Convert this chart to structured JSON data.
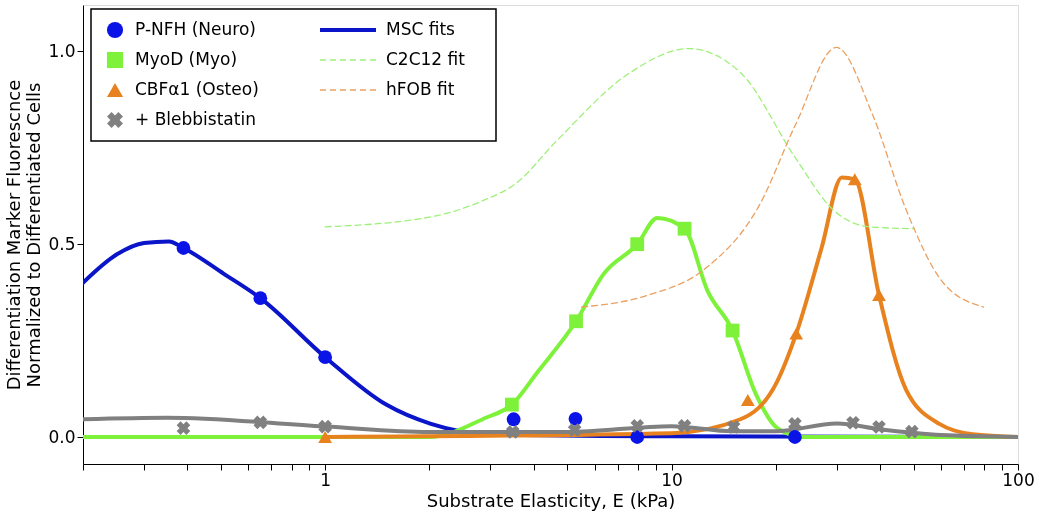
{
  "chart_data": {
    "type": "scatter",
    "xlabel": "Substrate Elasticity, E (kPa)",
    "ylabel": "Differentiation Marker Fluorescnce\nNormalized to Differentiated Cells",
    "log": "x",
    "grid": false,
    "legend": "top left",
    "xlim": [
      0.2,
      100
    ],
    "xticks": [
      {
        "value": 0.2,
        "label": null
      },
      {
        "value": 0.3,
        "label": null
      },
      {
        "value": 0.4,
        "label": null
      },
      {
        "value": 0.5,
        "label": null
      },
      {
        "value": 0.6,
        "label": null
      },
      {
        "value": 0.7,
        "label": null
      },
      {
        "value": 0.8,
        "label": null
      },
      {
        "value": 0.9,
        "label": null
      },
      1,
      {
        "value": 2,
        "label": null
      },
      {
        "value": 3,
        "label": null
      },
      {
        "value": 4,
        "label": null
      },
      {
        "value": 5,
        "label": null
      },
      {
        "value": 6,
        "label": null
      },
      {
        "value": 7,
        "label": null
      },
      {
        "value": 8,
        "label": null
      },
      {
        "value": 9,
        "label": null
      },
      10,
      {
        "value": 20,
        "label": null
      },
      {
        "value": 30,
        "label": null
      },
      {
        "value": 40,
        "label": null
      },
      {
        "value": 50,
        "label": null
      },
      {
        "value": 60,
        "label": null
      },
      {
        "value": 70,
        "label": null
      },
      {
        "value": 80,
        "label": null
      },
      {
        "value": 90,
        "label": null
      },
      100
    ],
    "ylim": [
      -0.07,
      1.12
    ],
    "yticks": [
      {
        "value": 0,
        "label": "0.0"
      },
      {
        "value": 0.5,
        "label": "0.5"
      },
      {
        "value": 1,
        "label": "1.0"
      }
    ],
    "series": [
      {
        "name": "P-NFH (Neuro)",
        "marker": "circle",
        "color": "#0a14e6",
        "x": [
          0.39,
          0.65,
          1.0,
          3.5,
          5.28,
          7.96,
          22.7
        ],
        "values": [
          0.49,
          0.36,
          0.207,
          0.046,
          0.047,
          0.0,
          0.0
        ]
      },
      {
        "name": "MyoD (Myo)",
        "marker": "square",
        "color": "#7ef23a",
        "x": [
          3.46,
          5.3,
          7.96,
          10.9,
          15.0
        ],
        "values": [
          0.084,
          0.3,
          0.5,
          0.54,
          0.276
        ]
      },
      {
        "name": "CBFα1 (Osteo)",
        "marker": "triangle",
        "color": "#e8821e",
        "x": [
          1.0,
          16.6,
          22.9,
          33.8,
          39.7
        ],
        "values": [
          0.0,
          0.096,
          0.268,
          0.668,
          0.368
        ]
      },
      {
        "name": "+ Blebbistatin",
        "marker": "cross",
        "color": "#808080",
        "x": [
          0.39,
          0.65,
          1.0,
          3.48,
          5.25,
          7.96,
          10.9,
          15.1,
          22.7,
          33.4,
          39.7,
          49.4
        ],
        "values": [
          0.023,
          0.038,
          0.027,
          0.013,
          0.018,
          0.029,
          0.029,
          0.026,
          0.034,
          0.037,
          0.026,
          0.014
        ]
      },
      {
        "name": "MSC fits",
        "type": "line",
        "line_style": "solid",
        "color": "#0a14c8",
        "x": [
          0.2,
          0.25,
          0.3,
          0.354,
          0.39,
          0.51,
          0.65,
          1.0,
          1.5,
          2.02,
          2.98,
          10,
          100
        ],
        "values": [
          0.4,
          0.473,
          0.503,
          0.507,
          0.49,
          0.423,
          0.36,
          0.207,
          0.084,
          0.034,
          0.007,
          0.002,
          0.0
        ]
      },
      {
        "type": "line",
        "line_style": "solid",
        "color": "#7ef23a",
        "x": [
          0.2,
          2.0,
          2.91,
          3.46,
          4.1,
          5.3,
          6.37,
          7.96,
          9.1,
          10.9,
          12.7,
          15.0,
          17.5,
          20.2,
          24,
          100
        ],
        "values": [
          0.0,
          0.0,
          0.05,
          0.084,
          0.168,
          0.3,
          0.423,
          0.5,
          0.568,
          0.54,
          0.379,
          0.276,
          0.112,
          0.023,
          0.0,
          0.0
        ]
      },
      {
        "type": "line",
        "line_style": "solid",
        "color": "#e8821e",
        "x": [
          1.0,
          10,
          15.8,
          20.2,
          22.9,
          27.1,
          31,
          33.8,
          39.7,
          47.5,
          59.3,
          74,
          100
        ],
        "values": [
          0.0,
          0.01,
          0.046,
          0.145,
          0.268,
          0.49,
          0.673,
          0.668,
          0.368,
          0.123,
          0.034,
          0.007,
          0.0
        ]
      },
      {
        "type": "line",
        "line_style": "solid",
        "color": "#808080",
        "x": [
          0.2,
          0.35,
          1.0,
          2,
          5,
          10,
          15,
          20,
          30,
          40,
          60,
          100
        ],
        "values": [
          0.046,
          0.05,
          0.027,
          0.013,
          0.013,
          0.028,
          0.015,
          0.015,
          0.035,
          0.02,
          0.005,
          0.0
        ]
      },
      {
        "name": "C2C12 fit",
        "type": "line",
        "line_style": "dashed",
        "color": "#9ff07a",
        "x": [
          1.0,
          2.0,
          2.84,
          3.55,
          4.66,
          7.6,
          11.2,
          15.8,
          22.8,
          29.2,
          37.2,
          50
        ],
        "values": [
          0.545,
          0.57,
          0.612,
          0.657,
          0.768,
          0.945,
          1.007,
          0.945,
          0.723,
          0.59,
          0.545,
          0.54
        ]
      },
      {
        "name": "hFOB fit",
        "type": "line",
        "line_style": "dashed",
        "color": "#eba060",
        "x": [
          5.5,
          8.58,
          12.4,
          17.9,
          22.8,
          29.9,
          38.1,
          47.5,
          60.8,
          79.5
        ],
        "values": [
          0.337,
          0.368,
          0.434,
          0.6,
          0.81,
          1.01,
          0.834,
          0.59,
          0.4,
          0.337
        ]
      }
    ]
  }
}
